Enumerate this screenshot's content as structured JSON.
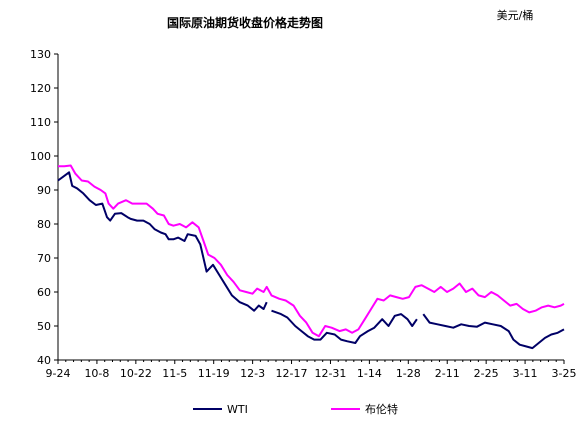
{
  "chart_data": {
    "type": "line",
    "title": "国际原油期货收盘价格走势图",
    "unit_label": "美元/桶",
    "ylim": [
      40,
      130
    ],
    "yticks": [
      40,
      50,
      60,
      70,
      80,
      90,
      100,
      110,
      120,
      130
    ],
    "grid": false,
    "legend_position": "bottom",
    "categories": [
      "9-24",
      "10-8",
      "10-22",
      "11-5",
      "11-19",
      "12-3",
      "12-17",
      "12-31",
      "1-14",
      "1-28",
      "2-11",
      "2-25",
      "3-11",
      "3-25"
    ],
    "colors": {
      "wti": "#000066",
      "brent": "#ff00ff",
      "axis": "#000000"
    },
    "series": [
      {
        "name": "WTI",
        "key": "wti",
        "values": [
          [
            0,
            92.8
          ],
          [
            0.3,
            93.8
          ],
          [
            0.7,
            95.2
          ],
          [
            0.9,
            91.2
          ],
          [
            1.2,
            90.5
          ],
          [
            1.6,
            89.0
          ],
          [
            2.0,
            87.0
          ],
          [
            2.4,
            85.6
          ],
          [
            2.8,
            86.0
          ],
          [
            3.1,
            82.0
          ],
          [
            3.3,
            81.0
          ],
          [
            3.6,
            83.0
          ],
          [
            4.0,
            83.2
          ],
          [
            4.4,
            82.0
          ],
          [
            4.6,
            81.5
          ],
          [
            5.0,
            81.0
          ],
          [
            5.4,
            81.0
          ],
          [
            5.8,
            80.0
          ],
          [
            6.1,
            78.5
          ],
          [
            6.5,
            77.5
          ],
          [
            6.8,
            77.0
          ],
          [
            7.0,
            75.5
          ],
          [
            7.3,
            75.5
          ],
          [
            7.6,
            76.0
          ],
          [
            8.0,
            75.0
          ],
          [
            8.2,
            77.0
          ],
          [
            8.7,
            76.5
          ],
          [
            9.0,
            74.0
          ],
          [
            9.4,
            66.0
          ],
          [
            9.8,
            68.0
          ],
          [
            10.2,
            65.0
          ],
          [
            10.6,
            62.0
          ],
          [
            11.0,
            59.0
          ],
          [
            11.5,
            57.0
          ],
          [
            12.0,
            56.0
          ],
          [
            12.4,
            54.5
          ],
          [
            12.7,
            56.0
          ],
          [
            13.0,
            55.0
          ],
          [
            13.2,
            57.0
          ],
          [
            13.3,
            null
          ],
          [
            13.5,
            54.5
          ],
          [
            14.1,
            53.5
          ],
          [
            14.5,
            52.5
          ],
          [
            15.0,
            50.0
          ],
          [
            15.4,
            48.5
          ],
          [
            15.8,
            47.0
          ],
          [
            16.2,
            46.0
          ],
          [
            16.6,
            46.0
          ],
          [
            17.0,
            48.0
          ],
          [
            17.5,
            47.5
          ],
          [
            17.9,
            46.0
          ],
          [
            18.3,
            45.5
          ],
          [
            18.8,
            45.0
          ],
          [
            19.1,
            47.0
          ],
          [
            19.6,
            48.5
          ],
          [
            20.0,
            49.5
          ],
          [
            20.5,
            52.0
          ],
          [
            20.9,
            50.0
          ],
          [
            21.3,
            53.0
          ],
          [
            21.7,
            53.5
          ],
          [
            22.1,
            52.0
          ],
          [
            22.4,
            50.0
          ],
          [
            22.7,
            52.0
          ],
          [
            22.9,
            null
          ],
          [
            23.1,
            53.5
          ],
          [
            23.5,
            51.0
          ],
          [
            24.0,
            50.5
          ],
          [
            24.5,
            50.0
          ],
          [
            25.0,
            49.5
          ],
          [
            25.5,
            50.5
          ],
          [
            26.0,
            50.0
          ],
          [
            26.5,
            49.8
          ],
          [
            27.0,
            51.0
          ],
          [
            27.5,
            50.5
          ],
          [
            28.0,
            50.0
          ],
          [
            28.5,
            48.5
          ],
          [
            28.8,
            46.0
          ],
          [
            29.2,
            44.5
          ],
          [
            29.6,
            44.0
          ],
          [
            30.0,
            43.5
          ],
          [
            30.4,
            45.0
          ],
          [
            30.8,
            46.5
          ],
          [
            31.2,
            47.5
          ],
          [
            31.6,
            48.0
          ],
          [
            32.0,
            49.0
          ]
        ]
      },
      {
        "name": "布伦特",
        "key": "brent",
        "values": [
          [
            0,
            97.0
          ],
          [
            0.4,
            97.0
          ],
          [
            0.8,
            97.2
          ],
          [
            1.1,
            94.8
          ],
          [
            1.5,
            92.8
          ],
          [
            1.9,
            92.5
          ],
          [
            2.3,
            91.0
          ],
          [
            2.7,
            90.0
          ],
          [
            3.0,
            89.0
          ],
          [
            3.2,
            86.0
          ],
          [
            3.5,
            84.5
          ],
          [
            3.8,
            86.0
          ],
          [
            4.3,
            87.0
          ],
          [
            4.7,
            86.0
          ],
          [
            5.2,
            86.0
          ],
          [
            5.6,
            86.0
          ],
          [
            6.0,
            84.5
          ],
          [
            6.3,
            83.0
          ],
          [
            6.7,
            82.5
          ],
          [
            7.0,
            80.0
          ],
          [
            7.3,
            79.5
          ],
          [
            7.7,
            80.0
          ],
          [
            8.1,
            79.0
          ],
          [
            8.5,
            80.5
          ],
          [
            8.9,
            79.0
          ],
          [
            9.2,
            75.0
          ],
          [
            9.5,
            71.0
          ],
          [
            9.9,
            70.0
          ],
          [
            10.3,
            68.0
          ],
          [
            10.7,
            65.0
          ],
          [
            11.1,
            63.0
          ],
          [
            11.5,
            60.5
          ],
          [
            11.9,
            60.0
          ],
          [
            12.3,
            59.5
          ],
          [
            12.6,
            61.0
          ],
          [
            13.0,
            60.0
          ],
          [
            13.2,
            61.5
          ],
          [
            13.5,
            59.0
          ],
          [
            14.0,
            58.0
          ],
          [
            14.4,
            57.5
          ],
          [
            14.9,
            56.0
          ],
          [
            15.3,
            53.0
          ],
          [
            15.7,
            51.0
          ],
          [
            16.1,
            48.0
          ],
          [
            16.5,
            47.0
          ],
          [
            16.9,
            50.0
          ],
          [
            17.3,
            49.5
          ],
          [
            17.8,
            48.5
          ],
          [
            18.2,
            49.0
          ],
          [
            18.6,
            48.0
          ],
          [
            19.0,
            49.0
          ],
          [
            19.4,
            52.0
          ],
          [
            19.8,
            55.0
          ],
          [
            20.2,
            58.0
          ],
          [
            20.6,
            57.5
          ],
          [
            21.0,
            59.0
          ],
          [
            21.4,
            58.5
          ],
          [
            21.8,
            58.0
          ],
          [
            22.2,
            58.5
          ],
          [
            22.6,
            61.5
          ],
          [
            23.0,
            62.0
          ],
          [
            23.4,
            61.0
          ],
          [
            23.8,
            60.0
          ],
          [
            24.2,
            61.5
          ],
          [
            24.6,
            60.0
          ],
          [
            25.0,
            61.0
          ],
          [
            25.4,
            62.5
          ],
          [
            25.8,
            60.0
          ],
          [
            26.2,
            61.0
          ],
          [
            26.6,
            59.0
          ],
          [
            27.0,
            58.5
          ],
          [
            27.4,
            60.0
          ],
          [
            27.8,
            59.0
          ],
          [
            28.2,
            57.5
          ],
          [
            28.6,
            56.0
          ],
          [
            29.0,
            56.5
          ],
          [
            29.4,
            55.0
          ],
          [
            29.8,
            54.0
          ],
          [
            30.2,
            54.5
          ],
          [
            30.6,
            55.5
          ],
          [
            31.0,
            56.0
          ],
          [
            31.4,
            55.5
          ],
          [
            31.8,
            56.0
          ],
          [
            32.0,
            56.5
          ]
        ]
      }
    ]
  }
}
